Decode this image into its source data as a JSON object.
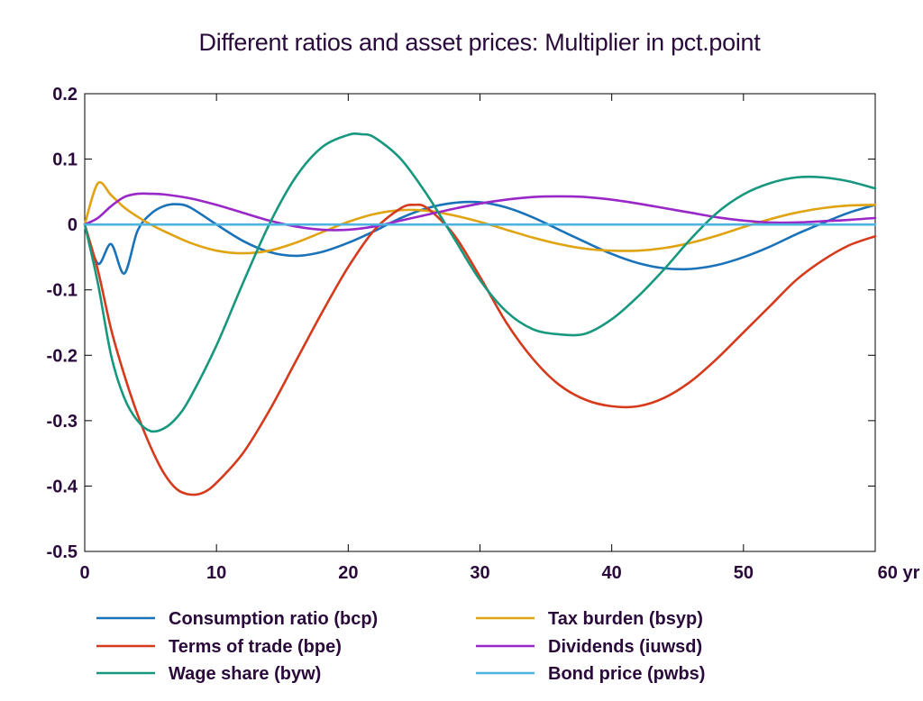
{
  "chart_data": {
    "type": "line",
    "title": "Different ratios and asset prices: Multiplier in pct.point",
    "xlabel": "",
    "ylabel": "",
    "x_unit": "yr",
    "xlim": [
      0,
      60
    ],
    "ylim": [
      -0.5,
      0.2
    ],
    "x_ticks": [
      0,
      10,
      20,
      30,
      40,
      50,
      60
    ],
    "x_tick_labels": [
      "0",
      "10",
      "20",
      "30",
      "40",
      "50",
      "60 yr"
    ],
    "y_ticks": [
      0.2,
      0.1,
      0,
      -0.1,
      -0.2,
      -0.3,
      -0.4,
      -0.5
    ],
    "y_tick_labels": [
      "0.2",
      "0.1",
      "0",
      "-0.1",
      "-0.2",
      "-0.3",
      "-0.4",
      "-0.5"
    ],
    "grid": false,
    "zero_line": true,
    "legend_position": "bottom",
    "series": [
      {
        "name": "Consumption ratio (bcp)",
        "color": "#1a72b8",
        "x": [
          0,
          1,
          2,
          3,
          4,
          5,
          6,
          7,
          8,
          10,
          12,
          14,
          16,
          18,
          20,
          22,
          24,
          26,
          28,
          30,
          32,
          34,
          36,
          38,
          40,
          42,
          44,
          46,
          48,
          50,
          52,
          54,
          56,
          58,
          60
        ],
        "y": [
          0,
          -0.06,
          -0.03,
          -0.075,
          -0.01,
          0.016,
          0.028,
          0.031,
          0.026,
          0.0,
          -0.025,
          -0.042,
          -0.048,
          -0.042,
          -0.028,
          -0.01,
          0.01,
          0.025,
          0.033,
          0.034,
          0.026,
          0.011,
          -0.008,
          -0.027,
          -0.045,
          -0.059,
          -0.067,
          -0.068,
          -0.062,
          -0.05,
          -0.034,
          -0.015,
          0.002,
          0.018,
          0.03
        ]
      },
      {
        "name": "Tax burden (bsyp)",
        "color": "#e0a312",
        "x": [
          0,
          1,
          2,
          3,
          4,
          5,
          6,
          8,
          10,
          12,
          14,
          16,
          18,
          20,
          22,
          24,
          26,
          28,
          30,
          32,
          34,
          36,
          38,
          40,
          42,
          44,
          46,
          48,
          50,
          52,
          54,
          56,
          58,
          60
        ],
        "y": [
          0,
          0.063,
          0.045,
          0.026,
          0.012,
          0.0,
          -0.01,
          -0.028,
          -0.04,
          -0.044,
          -0.04,
          -0.028,
          -0.012,
          0.004,
          0.016,
          0.022,
          0.021,
          0.014,
          0.004,
          -0.008,
          -0.02,
          -0.03,
          -0.037,
          -0.04,
          -0.04,
          -0.036,
          -0.028,
          -0.017,
          -0.004,
          0.008,
          0.018,
          0.025,
          0.029,
          0.03
        ]
      },
      {
        "name": "Terms of trade (bpe)",
        "color": "#d63a1c",
        "x": [
          0,
          1,
          2,
          3,
          4,
          5,
          6,
          7,
          8,
          9,
          10,
          12,
          14,
          16,
          18,
          20,
          22,
          24,
          25,
          26,
          28,
          30,
          32,
          34,
          36,
          38,
          40,
          42,
          44,
          46,
          48,
          50,
          52,
          54,
          56,
          58,
          60
        ],
        "y": [
          0,
          -0.07,
          -0.16,
          -0.23,
          -0.29,
          -0.34,
          -0.38,
          -0.405,
          -0.413,
          -0.41,
          -0.395,
          -0.35,
          -0.285,
          -0.21,
          -0.135,
          -0.065,
          -0.008,
          0.025,
          0.03,
          0.025,
          -0.015,
          -0.08,
          -0.15,
          -0.205,
          -0.245,
          -0.268,
          -0.278,
          -0.278,
          -0.265,
          -0.24,
          -0.205,
          -0.165,
          -0.125,
          -0.085,
          -0.055,
          -0.032,
          -0.018
        ]
      },
      {
        "name": "Dividends (iuwsd)",
        "color": "#9a28c8",
        "x": [
          0,
          1,
          2,
          3,
          4,
          5,
          6,
          8,
          10,
          12,
          14,
          16,
          18,
          20,
          22,
          24,
          26,
          28,
          30,
          32,
          34,
          36,
          38,
          40,
          42,
          44,
          46,
          48,
          50,
          52,
          54,
          56,
          58,
          60
        ],
        "y": [
          0,
          0.01,
          0.028,
          0.042,
          0.047,
          0.047,
          0.046,
          0.04,
          0.03,
          0.018,
          0.006,
          -0.003,
          -0.008,
          -0.008,
          -0.003,
          0.006,
          0.015,
          0.024,
          0.032,
          0.038,
          0.042,
          0.043,
          0.042,
          0.038,
          0.032,
          0.025,
          0.018,
          0.011,
          0.006,
          0.003,
          0.003,
          0.005,
          0.007,
          0.01
        ]
      },
      {
        "name": "Wage share (byw)",
        "color": "#17987e",
        "x": [
          0,
          1,
          2,
          3,
          4,
          5,
          6,
          7,
          8,
          10,
          12,
          14,
          16,
          18,
          20,
          21,
          22,
          24,
          26,
          28,
          30,
          32,
          34,
          36,
          38,
          40,
          42,
          44,
          46,
          48,
          50,
          52,
          54,
          56,
          58,
          60
        ],
        "y": [
          0,
          -0.09,
          -0.2,
          -0.265,
          -0.3,
          -0.316,
          -0.312,
          -0.295,
          -0.265,
          -0.185,
          -0.09,
          0.0,
          0.072,
          0.118,
          0.137,
          0.138,
          0.133,
          0.1,
          0.045,
          -0.02,
          -0.085,
          -0.133,
          -0.16,
          -0.168,
          -0.167,
          -0.145,
          -0.11,
          -0.068,
          -0.022,
          0.018,
          0.046,
          0.063,
          0.072,
          0.072,
          0.066,
          0.055
        ]
      },
      {
        "name": "Bond price (pwbs)",
        "color": "#4fb3e0",
        "x": [
          0,
          60
        ],
        "y": [
          0,
          0
        ]
      }
    ]
  }
}
